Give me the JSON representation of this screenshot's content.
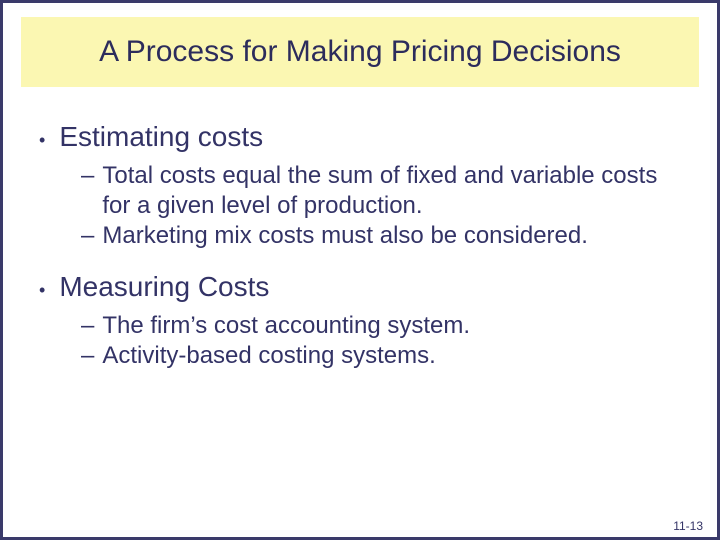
{
  "colors": {
    "slide_bg": "#ffffff",
    "slide_border": "#3a3a6a",
    "title_band_bg": "#fbf7b2",
    "title_text": "#2c2c5c",
    "bullet_text": "#333366",
    "sub_text": "#333366",
    "page_num": "#333366",
    "outer_bg": "#000000"
  },
  "typography": {
    "title_fontsize": 30,
    "bullet_l1_fontsize": 28,
    "bullet_l2_fontsize": 24,
    "pagenum_fontsize": 12,
    "font_family": "Arial"
  },
  "title": "A Process for Making Pricing Decisions",
  "bullets": [
    {
      "text": "Estimating costs",
      "sub": [
        "Total costs equal the sum of fixed and variable costs for a given level of production.",
        "Marketing mix costs must also be considered."
      ]
    },
    {
      "text": "Measuring Costs",
      "sub": [
        "The firm’s cost accounting system.",
        "Activity-based costing systems."
      ]
    }
  ],
  "page_number": "11-13"
}
